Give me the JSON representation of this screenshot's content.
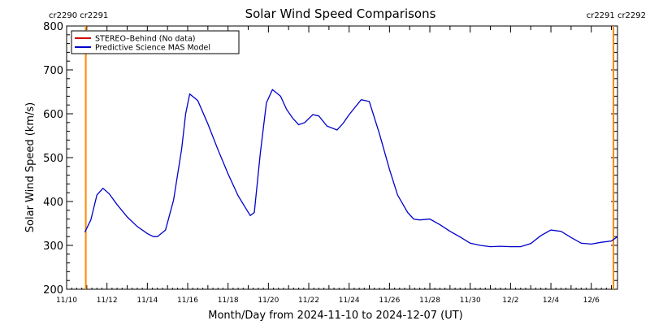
{
  "chart_data": {
    "type": "line",
    "title": "Solar Wind Speed Comparisons",
    "xlabel": "Month/Day from 2024-11-10 to 2024-12-07 (UT)",
    "ylabel": "Solar Wind Speed (km/s)",
    "xlim": [
      0,
      27.3
    ],
    "ylim": [
      200,
      800
    ],
    "x_ticks": [
      {
        "x": 0,
        "label": "11/10"
      },
      {
        "x": 2,
        "label": "11/12"
      },
      {
        "x": 4,
        "label": "11/14"
      },
      {
        "x": 6,
        "label": "11/16"
      },
      {
        "x": 8,
        "label": "11/18"
      },
      {
        "x": 10,
        "label": "11/20"
      },
      {
        "x": 12,
        "label": "11/22"
      },
      {
        "x": 14,
        "label": "11/24"
      },
      {
        "x": 16,
        "label": "11/26"
      },
      {
        "x": 18,
        "label": "11/28"
      },
      {
        "x": 20,
        "label": "11/30"
      },
      {
        "x": 22,
        "label": "12/2"
      },
      {
        "x": 24,
        "label": "12/4"
      },
      {
        "x": 26,
        "label": "12/6"
      }
    ],
    "y_ticks": [
      200,
      300,
      400,
      500,
      600,
      700,
      800
    ],
    "legend": {
      "placement": "top-left",
      "entries": [
        {
          "label": "STEREO–Behind (No data)",
          "color": "#cc0000"
        },
        {
          "label": "Predictive Science MAS Model",
          "color": "#0000cc"
        }
      ]
    },
    "markers": [
      {
        "x": 0.95,
        "color": "#ff8800",
        "labels": [
          "cr2290",
          "cr2291"
        ],
        "align": "left"
      },
      {
        "x": 27.1,
        "color": "#ff8800",
        "labels": [
          "cr2291",
          "cr2292"
        ],
        "align": "right"
      }
    ],
    "series": [
      {
        "name": "Predictive Science MAS Model",
        "color": "#0000cc",
        "x": [
          0.9,
          1.2,
          1.5,
          1.8,
          2.1,
          2.5,
          3.0,
          3.5,
          4.0,
          4.3,
          4.5,
          4.9,
          5.3,
          5.7,
          5.9,
          6.1,
          6.5,
          7.0,
          7.5,
          8.0,
          8.5,
          8.9,
          9.1,
          9.3,
          9.6,
          9.9,
          10.2,
          10.6,
          10.9,
          11.2,
          11.5,
          11.8,
          12.2,
          12.5,
          12.9,
          13.4,
          13.7,
          14.0,
          14.3,
          14.6,
          15.0,
          15.5,
          16.0,
          16.4,
          16.9,
          17.2,
          17.5,
          18.0,
          18.5,
          19.0,
          19.5,
          20.0,
          20.5,
          21.0,
          21.5,
          22.0,
          22.5,
          23.0,
          23.5,
          24.0,
          24.5,
          25.0,
          25.5,
          26.0,
          26.5,
          27.0,
          27.3
        ],
        "y": [
          330,
          358,
          415,
          430,
          418,
          393,
          365,
          343,
          327,
          320,
          320,
          335,
          403,
          520,
          600,
          645,
          630,
          577,
          518,
          463,
          413,
          383,
          368,
          375,
          510,
          625,
          655,
          640,
          610,
          590,
          575,
          580,
          598,
          595,
          572,
          563,
          578,
          598,
          615,
          632,
          628,
          555,
          473,
          415,
          375,
          360,
          358,
          360,
          347,
          332,
          319,
          305,
          300,
          297,
          298,
          297,
          297,
          304,
          322,
          335,
          332,
          318,
          305,
          303,
          307,
          310,
          320
        ]
      }
    ]
  }
}
